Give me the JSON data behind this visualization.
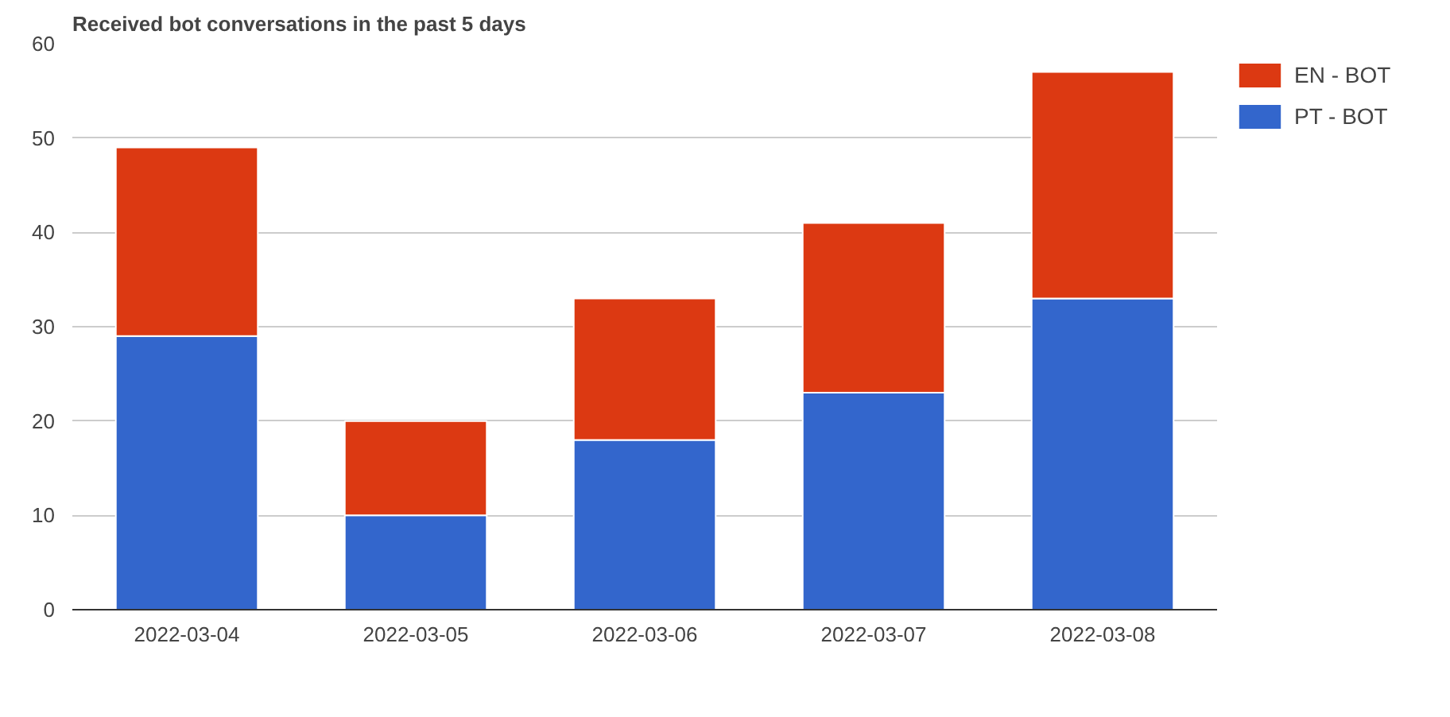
{
  "chart_data": {
    "type": "bar",
    "title": "Received bot conversations in the past 5 days",
    "stacked": true,
    "categories": [
      "2022-03-04",
      "2022-03-05",
      "2022-03-06",
      "2022-03-07",
      "2022-03-08"
    ],
    "series": [
      {
        "name": "PT - BOT",
        "color": "#3366cc",
        "values": [
          29,
          10,
          18,
          23,
          33
        ]
      },
      {
        "name": "EN - BOT",
        "color": "#dc3912",
        "values": [
          20,
          10,
          15,
          18,
          24
        ]
      }
    ],
    "ylim": [
      0,
      60
    ],
    "yticks": [
      0,
      10,
      20,
      30,
      40,
      50,
      60
    ],
    "grid": "y",
    "legend": "top right"
  }
}
